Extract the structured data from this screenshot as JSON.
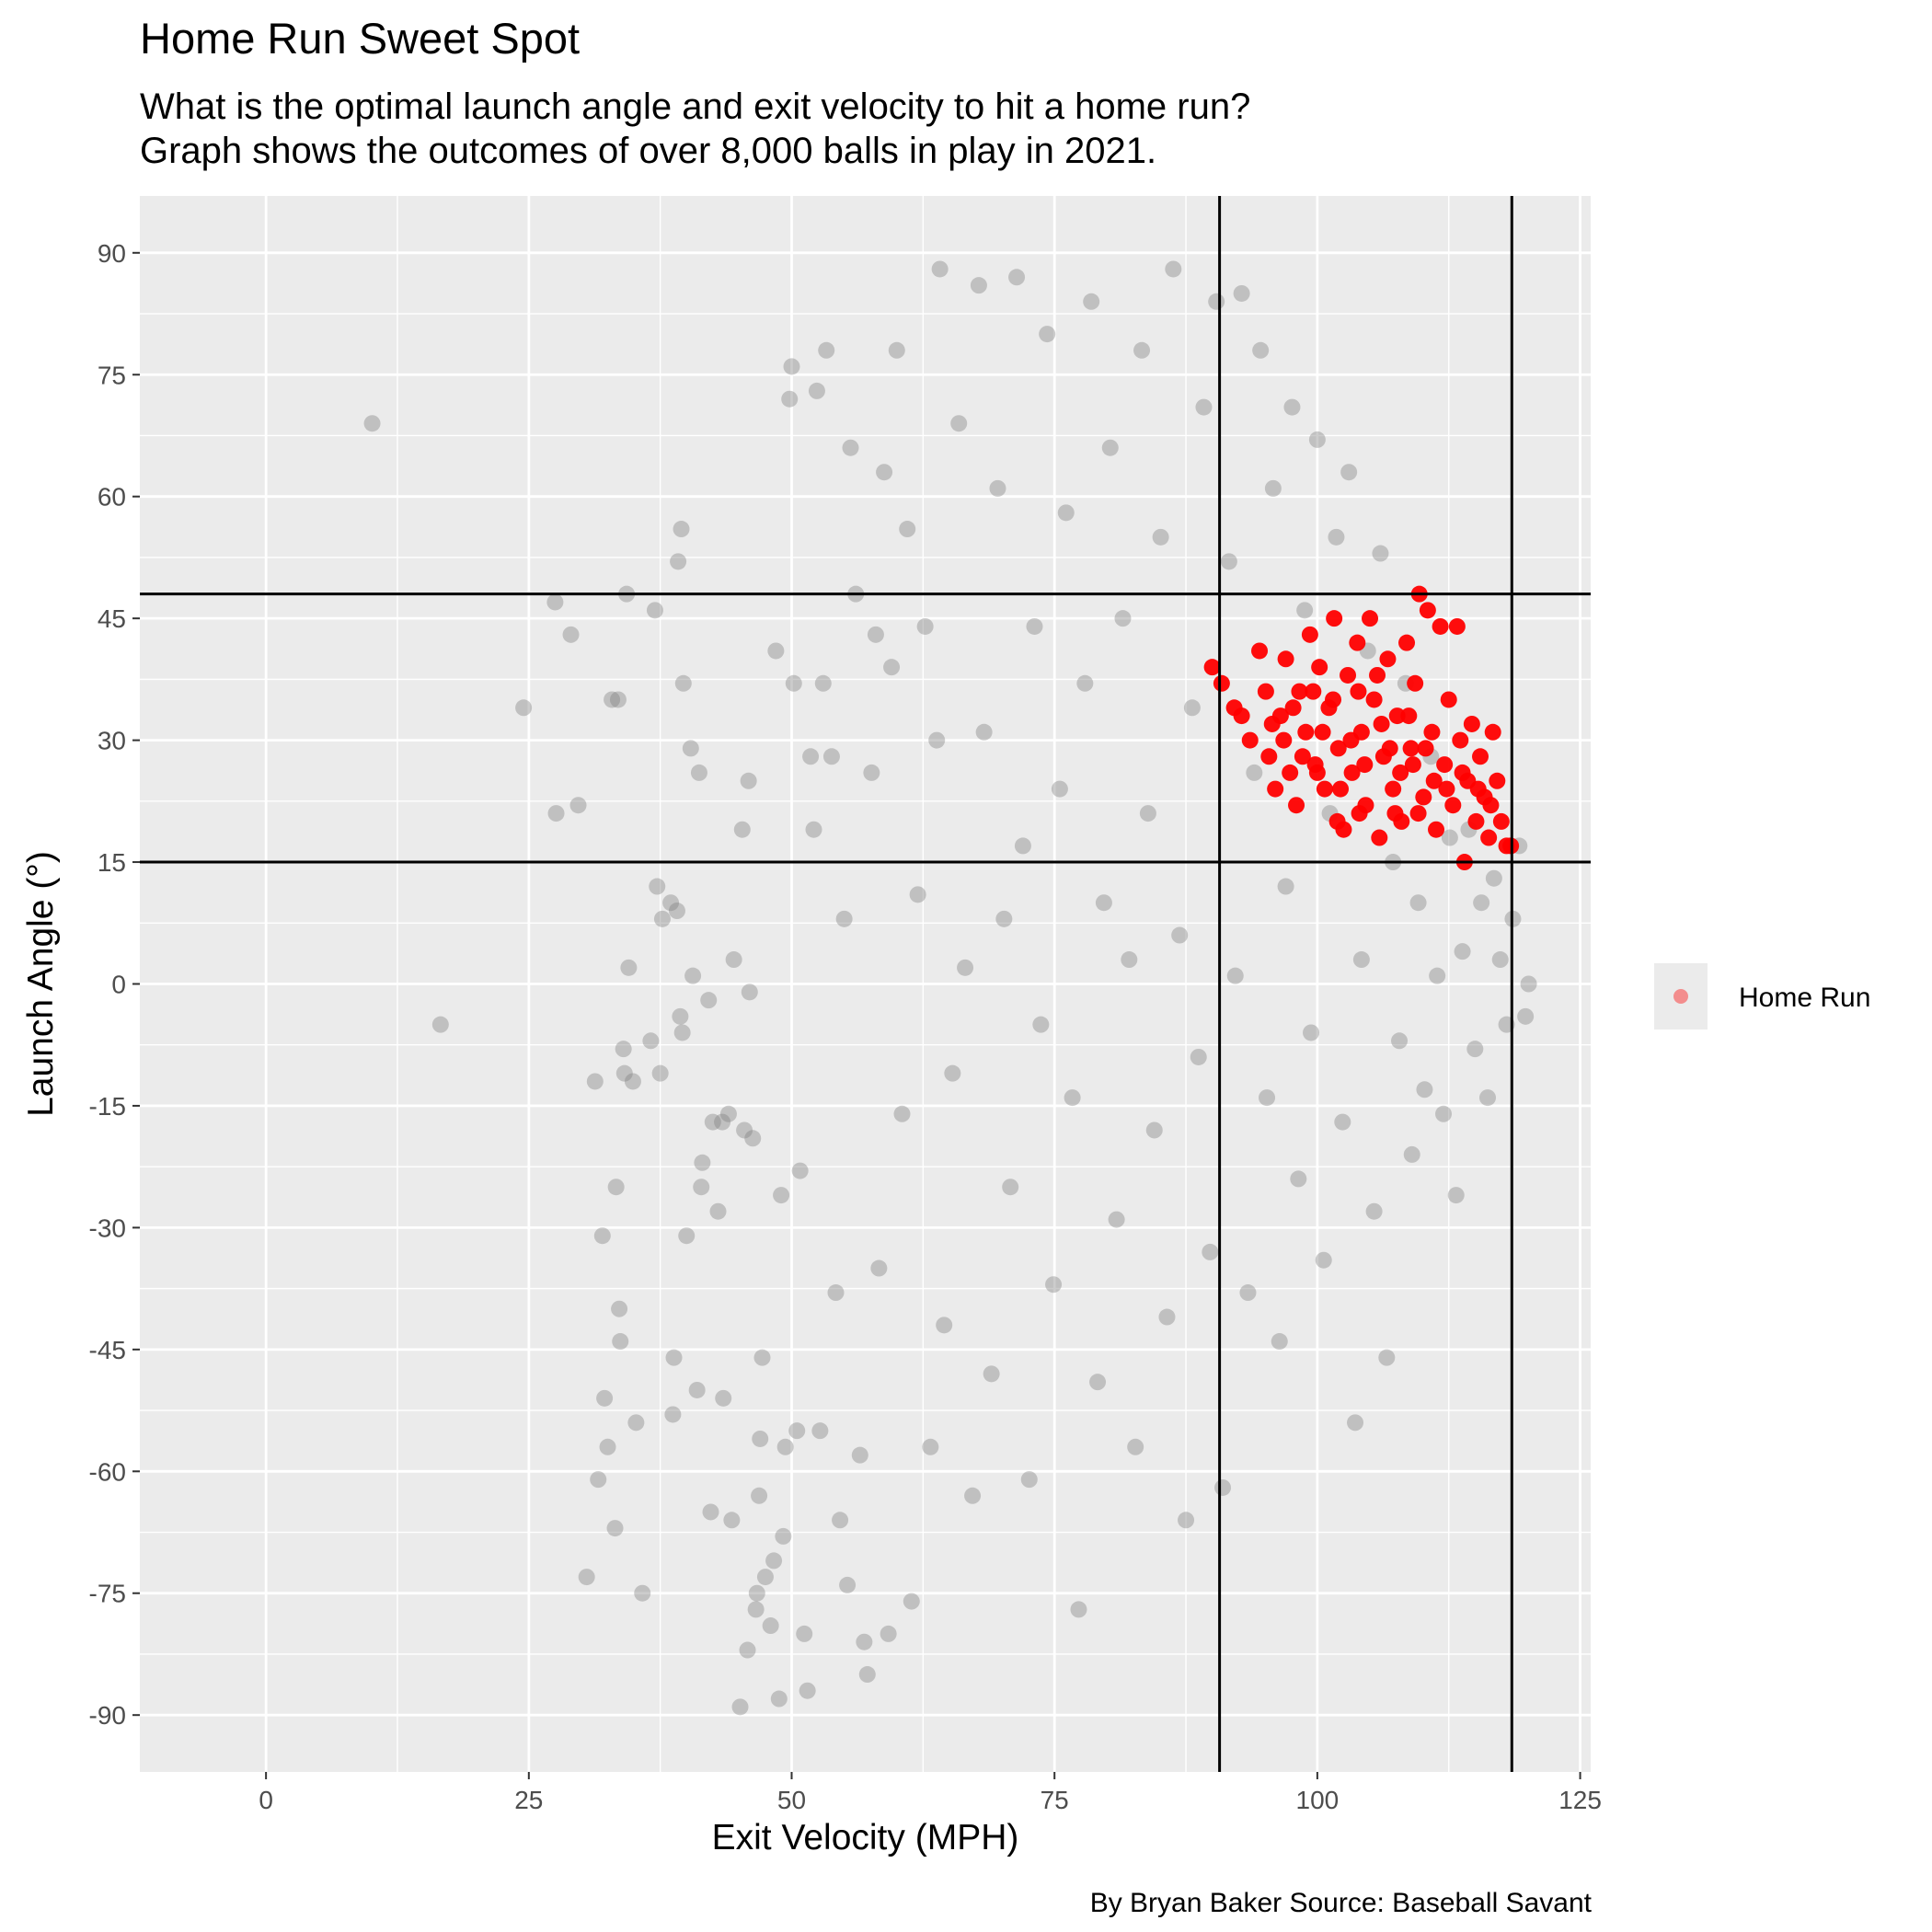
{
  "chart_data": {
    "type": "scatter",
    "title": "Home Run Sweet Spot",
    "subtitle": [
      "What is the optimal launch angle and exit velocity to hit a home run?",
      "Graph shows the outcomes of over 8,000 balls in play in 2021."
    ],
    "caption": "By Bryan Baker  Source: Baseball Savant",
    "xlabel": "Exit Velocity (MPH)",
    "ylabel": "Launch Angle (°)",
    "xlim": [
      -12,
      126
    ],
    "ylim": [
      -97,
      97
    ],
    "x_ticks": [
      0,
      25,
      50,
      75,
      100,
      125
    ],
    "y_ticks": [
      -90,
      -75,
      -60,
      -45,
      -30,
      -15,
      0,
      15,
      30,
      45,
      60,
      75,
      90
    ],
    "grid": true,
    "legend_position": "right",
    "reference_lines": {
      "vertical": [
        90.7,
        118.5
      ],
      "horizontal": [
        15,
        48
      ]
    },
    "series": [
      {
        "name": "",
        "color": "#7f7f7f",
        "points": [
          [
            10.1,
            69
          ],
          [
            16.6,
            -5
          ],
          [
            24.5,
            34
          ],
          [
            27.5,
            47
          ],
          [
            27.6,
            21
          ],
          [
            29,
            43
          ],
          [
            29.7,
            22
          ],
          [
            30.5,
            -73
          ],
          [
            31.3,
            -12
          ],
          [
            31.6,
            -61
          ],
          [
            32,
            -31
          ],
          [
            32.2,
            -51
          ],
          [
            32.5,
            -57
          ],
          [
            32.9,
            35
          ],
          [
            33.2,
            -67
          ],
          [
            33.3,
            -25
          ],
          [
            33.5,
            35
          ],
          [
            33.6,
            -40
          ],
          [
            33.7,
            -44
          ],
          [
            34,
            -8
          ],
          [
            34.1,
            -11
          ],
          [
            34.3,
            48
          ],
          [
            34.5,
            2
          ],
          [
            34.9,
            -12
          ],
          [
            35.2,
            -54
          ],
          [
            35.8,
            -75
          ],
          [
            36.6,
            -7
          ],
          [
            37,
            46
          ],
          [
            37.2,
            12
          ],
          [
            37.5,
            -11
          ],
          [
            37.7,
            8
          ],
          [
            38.5,
            10
          ],
          [
            38.7,
            -53
          ],
          [
            38.8,
            -46
          ],
          [
            39.1,
            9
          ],
          [
            39.2,
            52
          ],
          [
            39.4,
            -4
          ],
          [
            39.5,
            56
          ],
          [
            39.6,
            -6
          ],
          [
            39.7,
            37
          ],
          [
            40,
            -31
          ],
          [
            40.4,
            29
          ],
          [
            40.6,
            1
          ],
          [
            41,
            -50
          ],
          [
            41.2,
            26
          ],
          [
            41.4,
            -25
          ],
          [
            41.5,
            -22
          ],
          [
            42.1,
            -2
          ],
          [
            42.3,
            -65
          ],
          [
            42.5,
            -17
          ],
          [
            43,
            -28
          ],
          [
            43.4,
            -17
          ],
          [
            43.5,
            -51
          ],
          [
            44,
            -16
          ],
          [
            44.3,
            -66
          ],
          [
            44.5,
            3
          ],
          [
            45.1,
            -89
          ],
          [
            45.3,
            19
          ],
          [
            45.5,
            -18
          ],
          [
            45.8,
            -82
          ],
          [
            45.9,
            25
          ],
          [
            46,
            -1
          ],
          [
            46.3,
            -19
          ],
          [
            46.6,
            -77
          ],
          [
            46.7,
            -75
          ],
          [
            46.9,
            -63
          ],
          [
            47,
            -56
          ],
          [
            47.2,
            -46
          ],
          [
            47.5,
            -73
          ],
          [
            48,
            -79
          ],
          [
            48.3,
            -71
          ],
          [
            48.5,
            41
          ],
          [
            48.8,
            -88
          ],
          [
            49,
            -26
          ],
          [
            49.2,
            -68
          ],
          [
            49.4,
            -57
          ],
          [
            49.8,
            72
          ],
          [
            50,
            76
          ],
          [
            50.2,
            37
          ],
          [
            50.5,
            -55
          ],
          [
            50.8,
            -23
          ],
          [
            51.2,
            -80
          ],
          [
            51.5,
            -87
          ],
          [
            51.8,
            28
          ],
          [
            52.1,
            19
          ],
          [
            52.4,
            73
          ],
          [
            52.7,
            -55
          ],
          [
            53,
            37
          ],
          [
            53.3,
            78
          ],
          [
            53.8,
            28
          ],
          [
            54.2,
            -38
          ],
          [
            54.6,
            -66
          ],
          [
            55,
            8
          ],
          [
            55.3,
            -74
          ],
          [
            55.6,
            66
          ],
          [
            56.1,
            48
          ],
          [
            56.5,
            -58
          ],
          [
            56.9,
            -81
          ],
          [
            57.2,
            -85
          ],
          [
            57.6,
            26
          ],
          [
            58,
            43
          ],
          [
            58.3,
            -35
          ],
          [
            58.8,
            63
          ],
          [
            59.2,
            -80
          ],
          [
            59.5,
            39
          ],
          [
            60,
            78
          ],
          [
            60.5,
            -16
          ],
          [
            61,
            56
          ],
          [
            61.4,
            -76
          ],
          [
            62,
            11
          ],
          [
            62.7,
            44
          ],
          [
            63.2,
            -57
          ],
          [
            63.8,
            30
          ],
          [
            64.1,
            88
          ],
          [
            64.5,
            -42
          ],
          [
            65.3,
            -11
          ],
          [
            65.9,
            69
          ],
          [
            66.5,
            2
          ],
          [
            67.2,
            -63
          ],
          [
            67.8,
            86
          ],
          [
            68.3,
            31
          ],
          [
            69,
            -48
          ],
          [
            69.6,
            61
          ],
          [
            70.2,
            8
          ],
          [
            70.8,
            -25
          ],
          [
            71.4,
            87
          ],
          [
            72,
            17
          ],
          [
            72.6,
            -61
          ],
          [
            73.1,
            44
          ],
          [
            73.7,
            -5
          ],
          [
            74.3,
            80
          ],
          [
            74.9,
            -37
          ],
          [
            75.5,
            24
          ],
          [
            76.1,
            58
          ],
          [
            76.7,
            -14
          ],
          [
            77.3,
            -77
          ],
          [
            77.9,
            37
          ],
          [
            78.5,
            84
          ],
          [
            79.1,
            -49
          ],
          [
            79.7,
            10
          ],
          [
            80.3,
            66
          ],
          [
            80.9,
            -29
          ],
          [
            81.5,
            45
          ],
          [
            82.1,
            3
          ],
          [
            82.7,
            -57
          ],
          [
            83.3,
            78
          ],
          [
            83.9,
            21
          ],
          [
            84.5,
            -18
          ],
          [
            85.1,
            55
          ],
          [
            85.7,
            -41
          ],
          [
            86.3,
            88
          ],
          [
            86.9,
            6
          ],
          [
            87.5,
            -66
          ],
          [
            88.1,
            34
          ],
          [
            88.7,
            -9
          ],
          [
            89.2,
            71
          ],
          [
            89.8,
            -33
          ],
          [
            90.4,
            84
          ],
          [
            91,
            -62
          ],
          [
            91.6,
            52
          ],
          [
            92.2,
            1
          ],
          [
            92.8,
            85
          ],
          [
            93.4,
            -38
          ],
          [
            94,
            26
          ],
          [
            94.6,
            78
          ],
          [
            95.2,
            -14
          ],
          [
            95.8,
            61
          ],
          [
            96.4,
            -44
          ],
          [
            97,
            12
          ],
          [
            97.6,
            71
          ],
          [
            98.2,
            -24
          ],
          [
            98.8,
            46
          ],
          [
            99.4,
            -6
          ],
          [
            100,
            67
          ],
          [
            100.6,
            -34
          ],
          [
            101.2,
            21
          ],
          [
            101.8,
            55
          ],
          [
            102.4,
            -17
          ],
          [
            103,
            63
          ],
          [
            103.6,
            -54
          ],
          [
            104.2,
            3
          ],
          [
            104.8,
            41
          ],
          [
            105.4,
            -28
          ],
          [
            106,
            53
          ],
          [
            106.6,
            -46
          ],
          [
            107.2,
            15
          ],
          [
            107.8,
            -7
          ],
          [
            108.4,
            37
          ],
          [
            109,
            -21
          ],
          [
            109.6,
            10
          ],
          [
            110.2,
            -13
          ],
          [
            110.8,
            28
          ],
          [
            111.4,
            1
          ],
          [
            112,
            -16
          ],
          [
            112.6,
            18
          ],
          [
            113.2,
            -26
          ],
          [
            113.8,
            4
          ],
          [
            114.4,
            19
          ],
          [
            115,
            -8
          ],
          [
            115.6,
            10
          ],
          [
            116.2,
            -14
          ],
          [
            116.8,
            13
          ],
          [
            117.4,
            3
          ],
          [
            118,
            -5
          ],
          [
            118.6,
            8
          ],
          [
            119.2,
            17
          ],
          [
            119.8,
            -4
          ],
          [
            120.1,
            0
          ]
        ]
      },
      {
        "name": "Home Run",
        "color": "#ff0000",
        "points": [
          [
            90,
            39
          ],
          [
            90.9,
            37
          ],
          [
            92.1,
            34
          ],
          [
            92.8,
            33
          ],
          [
            93.6,
            30
          ],
          [
            94.5,
            41
          ],
          [
            95.1,
            36
          ],
          [
            95.4,
            28
          ],
          [
            96,
            24
          ],
          [
            96.5,
            33
          ],
          [
            97,
            40
          ],
          [
            97.4,
            26
          ],
          [
            98,
            22
          ],
          [
            98.3,
            36
          ],
          [
            98.9,
            31
          ],
          [
            99.3,
            43
          ],
          [
            99.8,
            27
          ],
          [
            100.2,
            39
          ],
          [
            100.7,
            24
          ],
          [
            101.1,
            34
          ],
          [
            101.6,
            45
          ],
          [
            102,
            29
          ],
          [
            102.5,
            19
          ],
          [
            102.9,
            38
          ],
          [
            103.3,
            26
          ],
          [
            103.8,
            42
          ],
          [
            104.2,
            31
          ],
          [
            104.6,
            22
          ],
          [
            105,
            45
          ],
          [
            105.4,
            35
          ],
          [
            105.9,
            18
          ],
          [
            106.3,
            28
          ],
          [
            106.7,
            40
          ],
          [
            107.2,
            24
          ],
          [
            107.6,
            33
          ],
          [
            108,
            20
          ],
          [
            108.5,
            42
          ],
          [
            108.9,
            29
          ],
          [
            109.3,
            37
          ],
          [
            109.7,
            48
          ],
          [
            110.1,
            23
          ],
          [
            110.5,
            46
          ],
          [
            110.9,
            31
          ],
          [
            111.3,
            19
          ],
          [
            111.7,
            44
          ],
          [
            112.1,
            27
          ],
          [
            112.5,
            35
          ],
          [
            112.9,
            22
          ],
          [
            113.3,
            44
          ],
          [
            113.6,
            30
          ],
          [
            114,
            15
          ],
          [
            114.3,
            25
          ],
          [
            114.7,
            32
          ],
          [
            115.1,
            20
          ],
          [
            115.5,
            28
          ],
          [
            115.9,
            23
          ],
          [
            116.3,
            18
          ],
          [
            116.7,
            31
          ],
          [
            117.1,
            25
          ],
          [
            117.5,
            20
          ],
          [
            118,
            17
          ],
          [
            118.4,
            17
          ],
          [
            101.5,
            35
          ],
          [
            103.2,
            30
          ],
          [
            104.5,
            27
          ],
          [
            106.1,
            32
          ],
          [
            107.9,
            26
          ],
          [
            100.5,
            31
          ],
          [
            102.2,
            24
          ],
          [
            105.7,
            38
          ],
          [
            109.1,
            27
          ],
          [
            111.1,
            25
          ],
          [
            98.6,
            28
          ],
          [
            97.7,
            34
          ],
          [
            99.6,
            36
          ],
          [
            103.9,
            36
          ],
          [
            106.9,
            29
          ],
          [
            108.7,
            33
          ],
          [
            110.3,
            29
          ],
          [
            112.3,
            24
          ],
          [
            113.8,
            26
          ],
          [
            115.3,
            24
          ],
          [
            116.5,
            22
          ],
          [
            104,
            21
          ],
          [
            101.9,
            20
          ],
          [
            107.4,
            21
          ],
          [
            109.6,
            21
          ],
          [
            96.8,
            30
          ],
          [
            95.7,
            32
          ],
          [
            100,
            26
          ]
        ]
      }
    ]
  }
}
